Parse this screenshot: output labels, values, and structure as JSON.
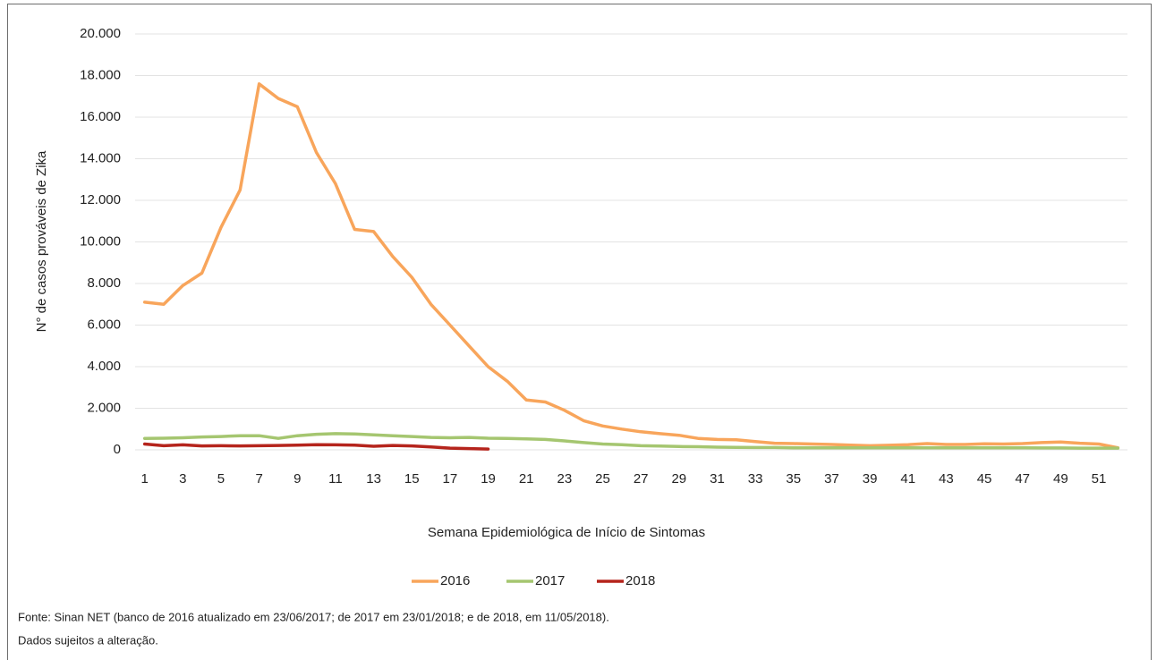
{
  "chart_data": {
    "type": "line",
    "ylabel": "N° de casos prováveis de Zika",
    "xlabel": "Semana Epidemiológica de Início de Sintomas",
    "notes": [
      "Fonte: Sinan NET (banco de 2016 atualizado em 23/06/2017; de 2017 em 23/01/2018; e de 2018, em 11/05/2018).",
      "Dados sujeitos a alteração."
    ],
    "x": [
      1,
      2,
      3,
      4,
      5,
      6,
      7,
      8,
      9,
      10,
      11,
      12,
      13,
      14,
      15,
      16,
      17,
      18,
      19,
      20,
      21,
      22,
      23,
      24,
      25,
      26,
      27,
      28,
      29,
      30,
      31,
      32,
      33,
      34,
      35,
      36,
      37,
      38,
      39,
      40,
      41,
      42,
      43,
      44,
      45,
      46,
      47,
      48,
      49,
      50,
      51,
      52
    ],
    "xlim": [
      0.5,
      52.5
    ],
    "xticks": [
      1,
      3,
      5,
      7,
      9,
      11,
      13,
      15,
      17,
      19,
      21,
      23,
      25,
      27,
      29,
      31,
      33,
      35,
      37,
      39,
      41,
      43,
      45,
      47,
      49,
      51
    ],
    "ylim": [
      0,
      20000
    ],
    "yticks": [
      0,
      {
        "value": 2000,
        "label": "2.000"
      },
      {
        "value": 4000,
        "label": "4.000"
      },
      {
        "value": 6000,
        "label": "6.000"
      },
      {
        "value": 8000,
        "label": "8.000"
      },
      {
        "value": 10000,
        "label": "10.000"
      },
      {
        "value": 12000,
        "label": "12.000"
      },
      {
        "value": 14000,
        "label": "14.000"
      },
      {
        "value": 16000,
        "label": "16.000"
      },
      {
        "value": 18000,
        "label": "18.000"
      },
      {
        "value": 20000,
        "label": "20.000"
      }
    ],
    "grid": true,
    "legend": "bottom",
    "series": [
      {
        "name": "2016",
        "color": "#f8a55b",
        "values": [
          7100,
          7000,
          7900,
          8500,
          10700,
          12500,
          17600,
          16900,
          16500,
          14300,
          12800,
          10600,
          10500,
          9300,
          8300,
          7000,
          6000,
          5000,
          4000,
          3300,
          2400,
          2300,
          1900,
          1400,
          1150,
          1000,
          870,
          780,
          700,
          550,
          500,
          480,
          400,
          320,
          300,
          280,
          260,
          230,
          200,
          220,
          250,
          300,
          260,
          260,
          290,
          280,
          300,
          350,
          380,
          320,
          280,
          100
        ]
      },
      {
        "name": "2017",
        "color": "#a5c670",
        "values": [
          550,
          560,
          580,
          620,
          640,
          680,
          680,
          550,
          680,
          750,
          780,
          760,
          720,
          680,
          640,
          600,
          580,
          600,
          560,
          550,
          530,
          500,
          430,
          350,
          280,
          250,
          200,
          180,
          160,
          150,
          130,
          120,
          110,
          110,
          100,
          100,
          100,
          100,
          100,
          100,
          100,
          100,
          100,
          100,
          100,
          100,
          100,
          90,
          90,
          80,
          80,
          80
        ]
      },
      {
        "name": "2018",
        "color": "#b5241c",
        "values": [
          280,
          200,
          240,
          190,
          200,
          190,
          200,
          210,
          230,
          250,
          240,
          230,
          170,
          210,
          190,
          140,
          80,
          60,
          40,
          null,
          null,
          null,
          null,
          null,
          null,
          null,
          null,
          null,
          null,
          null,
          null,
          null,
          null,
          null,
          null,
          null,
          null,
          null,
          null,
          null,
          null,
          null,
          null,
          null,
          null,
          null,
          null,
          null,
          null,
          null,
          null,
          null
        ]
      }
    ]
  }
}
